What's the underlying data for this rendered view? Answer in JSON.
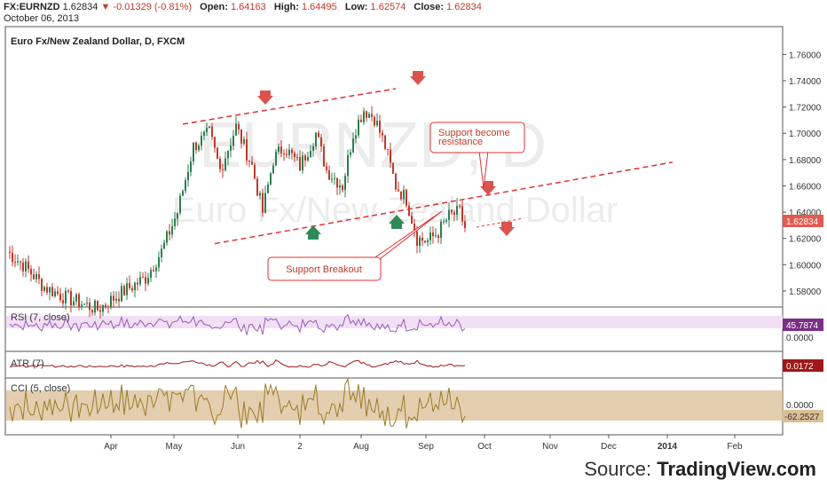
{
  "header": {
    "symbol": "FX:EURNZD",
    "price": "1.62834",
    "change": "-0.01329 (-0.81%)",
    "open_label": "Open:",
    "open": "1.64163",
    "high_label": "High:",
    "high": "1.64495",
    "low_label": "Low:",
    "low": "1.62574",
    "close_label": "Close:",
    "close": "1.62834",
    "date": "October 06, 2013"
  },
  "chart_title": "Euro Fx/New Zealand Dollar, D, FXCM",
  "watermark": {
    "symbol": "EURNZD, D",
    "name": "Euro Fx/New Zealand Dollar"
  },
  "annotations": {
    "breakout": "Support Breakout",
    "resistance_line1": "Support become",
    "resistance_line2": "resistance"
  },
  "source": {
    "prefix": "Source:",
    "brand": "TradingView.com"
  },
  "colors": {
    "up": "#2e7d4f",
    "down": "#c0392b",
    "trend": "#e03030",
    "rsi": "#9b59b6",
    "atr": "#a01818",
    "cci": "#9c7a2a",
    "cci_band": "#d9bf94",
    "rsi_band": "#f1dff5"
  },
  "chart_data": {
    "type": "candlestick",
    "title": "Euro Fx/New Zealand Dollar, D, FXCM",
    "x_ticks": [
      "Apr",
      "May",
      "Jun",
      "2",
      "Aug",
      "Sep",
      "Oct",
      "Nov",
      "Dec",
      "2014",
      "Feb"
    ],
    "y_ticks": [
      "1.76000",
      "1.74000",
      "1.72000",
      "1.70000",
      "1.68000",
      "1.66000",
      "1.64000",
      "1.62000",
      "1.60000",
      "1.58000"
    ],
    "ylim": [
      1.5705,
      1.7785
    ],
    "last_price_label": "1.62834",
    "anchors": [
      [
        0,
        1.61
      ],
      [
        6,
        1.6
      ],
      [
        14,
        1.583
      ],
      [
        22,
        1.575
      ],
      [
        34,
        1.566
      ],
      [
        44,
        1.58
      ],
      [
        52,
        1.59
      ],
      [
        58,
        1.61
      ],
      [
        64,
        1.64
      ],
      [
        70,
        1.69
      ],
      [
        76,
        1.7
      ],
      [
        80,
        1.672
      ],
      [
        86,
        1.705
      ],
      [
        92,
        1.675
      ],
      [
        96,
        1.64
      ],
      [
        100,
        1.68
      ],
      [
        104,
        1.69
      ],
      [
        110,
        1.675
      ],
      [
        116,
        1.7
      ],
      [
        120,
        1.672
      ],
      [
        126,
        1.66
      ],
      [
        130,
        1.7
      ],
      [
        134,
        1.718
      ],
      [
        138,
        1.712
      ],
      [
        142,
        1.69
      ],
      [
        146,
        1.66
      ],
      [
        150,
        1.65
      ],
      [
        154,
        1.62
      ],
      [
        158,
        1.618
      ],
      [
        162,
        1.625
      ],
      [
        166,
        1.637
      ],
      [
        170,
        1.64
      ],
      [
        172,
        1.628
      ]
    ],
    "resistance_line": {
      "from": [
        66,
        1.707
      ],
      "to": [
        146,
        1.734
      ]
    },
    "support_line": {
      "from": [
        78,
        1.616
      ],
      "to": [
        250,
        1.678
      ]
    },
    "rsi": {
      "name": "RSI (7, close)",
      "last": "45.7874",
      "axis_label": "0.0000"
    },
    "atr": {
      "name": "ATR (7)",
      "last": "0.0172"
    },
    "cci": {
      "name": "CCI (5, close)",
      "axis_label": "0.0000",
      "last": "-62.2527"
    }
  }
}
